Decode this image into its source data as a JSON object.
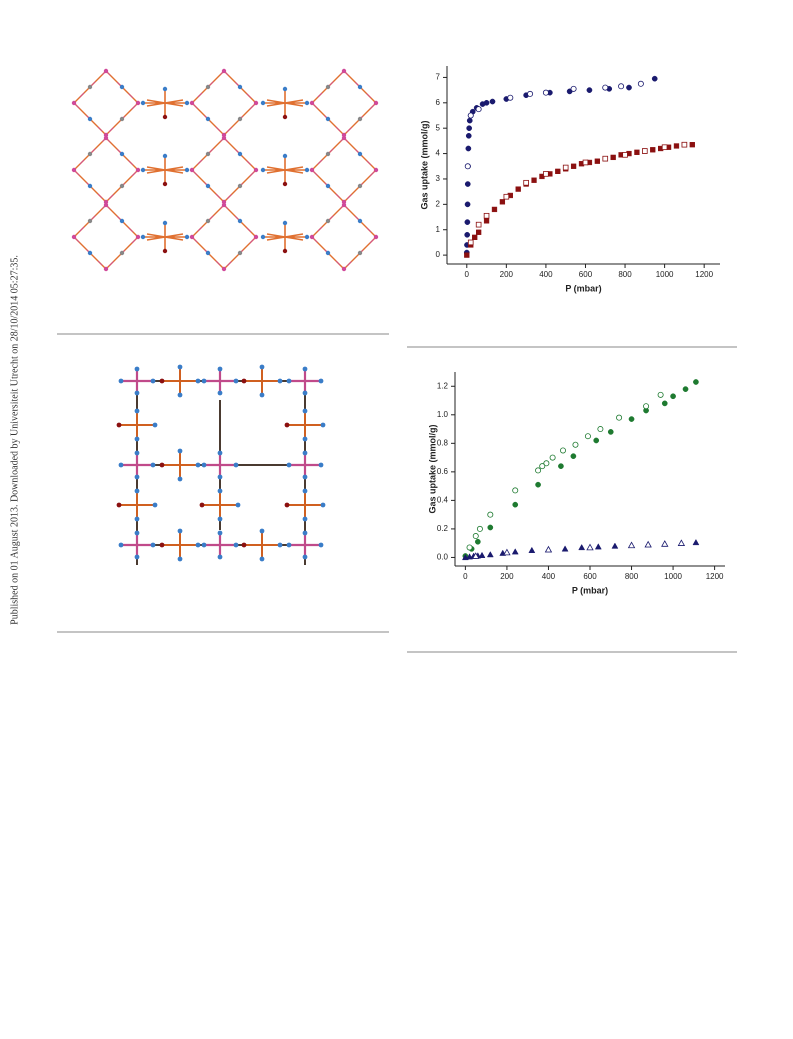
{
  "margin_note": "Published on 01 August 2013. Downloaded by Universiteit Utrecht on 28/10/2014 05:27:35.",
  "chart_data": [
    {
      "type": "scatter",
      "xlabel": "P (mbar)",
      "ylabel": "Gas uptake (mmol/g)",
      "xlim": [
        -100,
        1280
      ],
      "ylim": [
        -0.35,
        7.45
      ],
      "xticks": [
        0,
        200,
        400,
        600,
        800,
        1000,
        1200
      ],
      "yticks": [
        0,
        1,
        2,
        3,
        4,
        5,
        6,
        7
      ],
      "series": [
        {
          "color": "#1a1a6e",
          "marker": "circle",
          "filled": true,
          "x": [
            0,
            1,
            2,
            3,
            4,
            5,
            6,
            8,
            10,
            12,
            15,
            20,
            30,
            50,
            80,
            100,
            130,
            200,
            300,
            420,
            520,
            620,
            720,
            820,
            950
          ],
          "y": [
            0.1,
            0.4,
            0.8,
            1.3,
            2,
            2.8,
            3.5,
            4.2,
            4.7,
            5.0,
            5.3,
            5.5,
            5.65,
            5.8,
            5.95,
            6.0,
            6.05,
            6.15,
            6.3,
            6.4,
            6.45,
            6.5,
            6.55,
            6.6,
            6.95
          ]
        },
        {
          "color": "#1a1a6e",
          "marker": "circle",
          "filled": false,
          "x": [
            880,
            780,
            700,
            540,
            400,
            320,
            220,
            60,
            20,
            5
          ],
          "y": [
            6.75,
            6.65,
            6.6,
            6.55,
            6.4,
            6.35,
            6.2,
            5.75,
            5.5,
            3.5
          ]
        },
        {
          "color": "#8b1010",
          "marker": "square",
          "filled": true,
          "x": [
            0,
            20,
            40,
            60,
            100,
            140,
            180,
            220,
            260,
            300,
            340,
            380,
            420,
            460,
            500,
            540,
            580,
            620,
            660,
            700,
            740,
            780,
            820,
            860,
            900,
            940,
            980,
            1020,
            1060,
            1100,
            1140
          ],
          "y": [
            0,
            0.4,
            0.7,
            0.9,
            1.35,
            1.8,
            2.1,
            2.35,
            2.6,
            2.8,
            2.95,
            3.1,
            3.2,
            3.3,
            3.4,
            3.5,
            3.6,
            3.65,
            3.7,
            3.8,
            3.85,
            3.95,
            4.0,
            4.05,
            4.1,
            4.15,
            4.2,
            4.25,
            4.3,
            4.35,
            4.35
          ]
        },
        {
          "color": "#8b1010",
          "marker": "square",
          "filled": false,
          "x": [
            1100,
            1000,
            900,
            800,
            700,
            600,
            500,
            400,
            300,
            200,
            100,
            60,
            20
          ],
          "y": [
            4.35,
            4.25,
            4.1,
            3.95,
            3.8,
            3.65,
            3.45,
            3.2,
            2.85,
            2.3,
            1.55,
            1.2,
            0.5
          ]
        }
      ]
    },
    {
      "type": "scatter",
      "xlabel": "P (mbar)",
      "ylabel": "Gas uptake (mmol/g)",
      "xlim": [
        -50,
        1250
      ],
      "ylim": [
        -0.06,
        1.3
      ],
      "xticks": [
        0,
        200,
        400,
        600,
        800,
        1000,
        1200
      ],
      "yticks": [
        {
          "value": 0,
          "label": "0.0"
        },
        0.2,
        0.4,
        0.6,
        0.8,
        {
          "value": 1,
          "label": "1.0"
        },
        1.2
      ],
      "series": [
        {
          "color": "#1e7a30",
          "marker": "circle",
          "filled": true,
          "x": [
            0,
            30,
            60,
            120,
            240,
            350,
            460,
            520,
            630,
            700,
            800,
            870,
            960,
            1000,
            1060,
            1110
          ],
          "y": [
            0.01,
            0.06,
            0.11,
            0.21,
            0.37,
            0.51,
            0.64,
            0.71,
            0.82,
            0.88,
            0.97,
            1.03,
            1.08,
            1.13,
            1.18,
            1.23
          ]
        },
        {
          "color": "#1e7a30",
          "marker": "circle",
          "filled": false,
          "x": [
            940,
            870,
            740,
            650,
            590,
            530,
            470,
            420,
            390,
            370,
            350,
            240,
            120,
            70,
            50,
            20
          ],
          "y": [
            1.14,
            1.06,
            0.98,
            0.9,
            0.85,
            0.79,
            0.75,
            0.7,
            0.66,
            0.64,
            0.61,
            0.47,
            0.3,
            0.2,
            0.15,
            0.07
          ]
        },
        {
          "color": "#1a1a6e",
          "marker": "triangle",
          "filled": true,
          "x": [
            0,
            20,
            40,
            60,
            80,
            120,
            180,
            240,
            320,
            400,
            480,
            560,
            640,
            720,
            800,
            880,
            960,
            1040,
            1110
          ],
          "y": [
            0,
            0.005,
            0.01,
            0.012,
            0.015,
            0.02,
            0.03,
            0.04,
            0.05,
            0.055,
            0.06,
            0.07,
            0.075,
            0.08,
            0.085,
            0.09,
            0.095,
            0.1,
            0.105
          ]
        },
        {
          "color": "#1a1a6e",
          "marker": "triangle",
          "filled": false,
          "x": [
            1040,
            960,
            880,
            800,
            600,
            400,
            200,
            50
          ],
          "y": [
            0.1,
            0.095,
            0.09,
            0.085,
            0.07,
            0.055,
            0.035,
            0.01
          ]
        }
      ]
    }
  ]
}
